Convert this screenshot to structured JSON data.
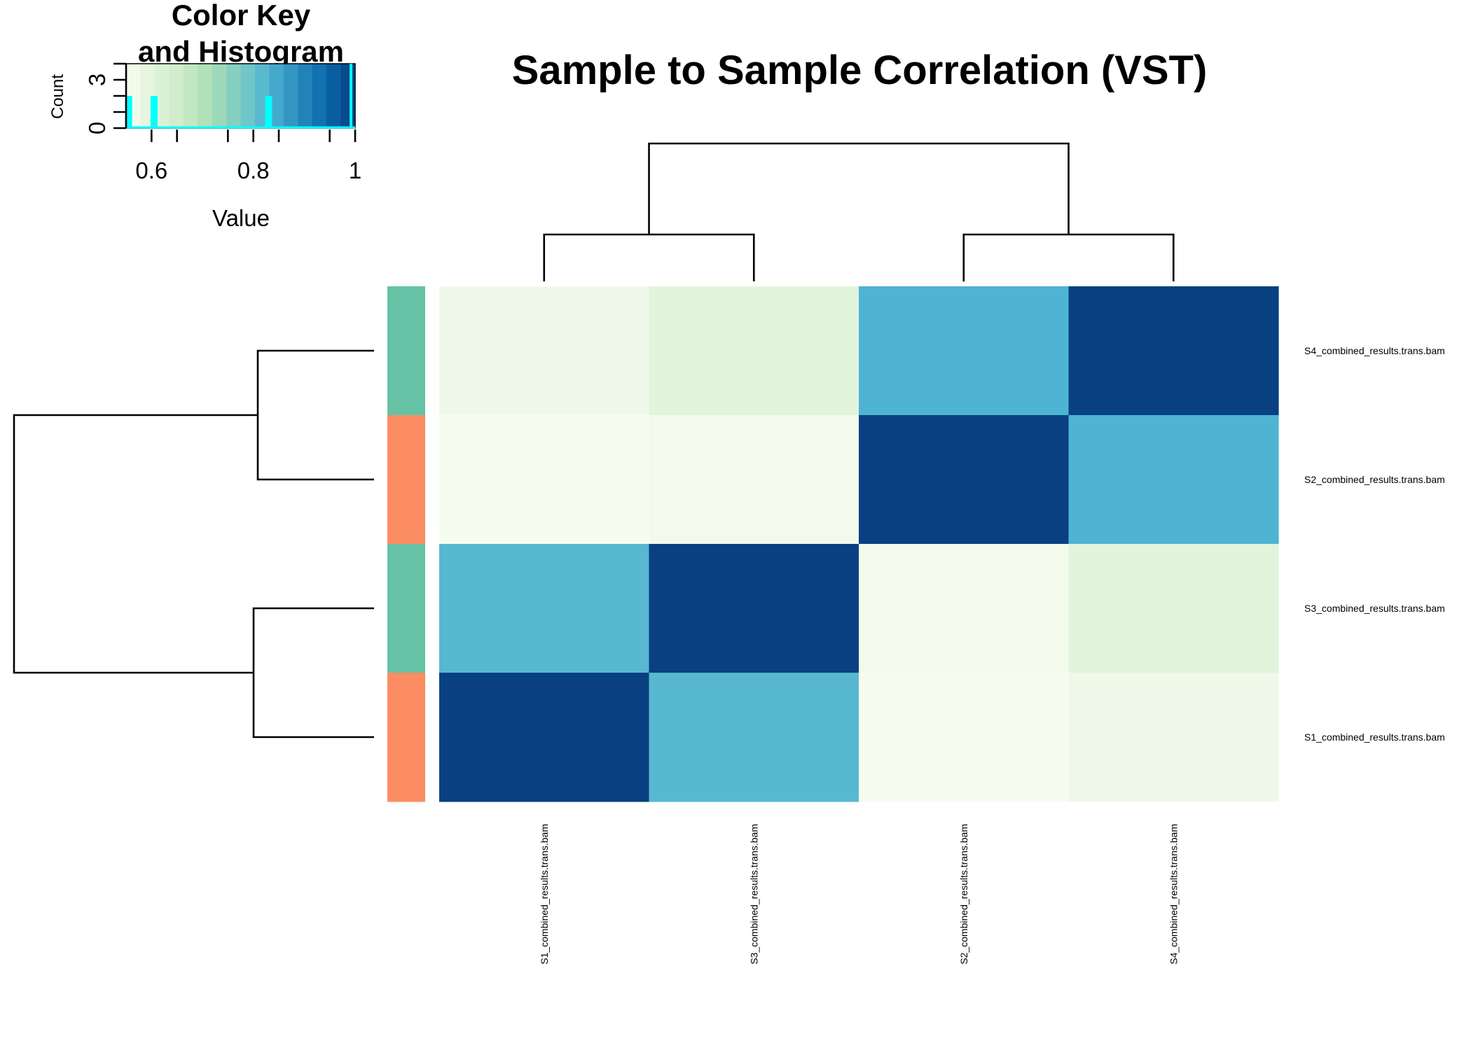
{
  "chart_data": {
    "type": "heatmap",
    "title": "Sample to Sample Correlation (VST)",
    "rows": [
      "S4_combined_results.trans.bam",
      "S2_combined_results.trans.bam",
      "S3_combined_results.trans.bam",
      "S1_combined_results.trans.bam"
    ],
    "columns": [
      "S1_combined_results.trans.bam",
      "S3_combined_results.trans.bam",
      "S2_combined_results.trans.bam",
      "S4_combined_results.trans.bam"
    ],
    "values": [
      [
        0.57,
        0.6,
        0.83,
        1.0
      ],
      [
        0.55,
        0.56,
        1.0,
        0.83
      ],
      [
        0.82,
        1.0,
        0.56,
        0.6
      ],
      [
        1.0,
        0.82,
        0.55,
        0.57
      ]
    ],
    "row_side_colors": [
      "#66c2a5",
      "#fc8d62",
      "#66c2a5",
      "#fc8d62"
    ],
    "color_scale": {
      "min": 0.55,
      "max": 1.0,
      "stops": [
        "#f7fcf0",
        "#e0f3db",
        "#ccebc5",
        "#a8ddb5",
        "#7bccc4",
        "#4eb3d3",
        "#2b8cbe",
        "#0868ac",
        "#084081"
      ]
    },
    "dendrogram_top": "((S1,S3),(S2,S4))",
    "dendrogram_left": "((S4,S2),(S3,S1))",
    "color_key": {
      "title_line1": "Color Key",
      "title_line2": "and Histogram",
      "xlabel": "Value",
      "ylabel": "Count",
      "xticks": [
        "0.6",
        "0.8",
        "1"
      ],
      "xtick_values": [
        0.6,
        0.8,
        1.0
      ],
      "yticks": [
        "0",
        "3"
      ],
      "ytick_values": [
        0,
        3
      ],
      "xlim": [
        0.55,
        1.0
      ],
      "ylim": [
        0,
        4
      ],
      "histogram_color": "#00ffff",
      "histogram": [
        {
          "value": 0.555,
          "count": 2
        },
        {
          "value": 0.605,
          "count": 2
        },
        {
          "value": 0.83,
          "count": 2
        },
        {
          "value": 1.0,
          "count": 4
        }
      ]
    }
  }
}
